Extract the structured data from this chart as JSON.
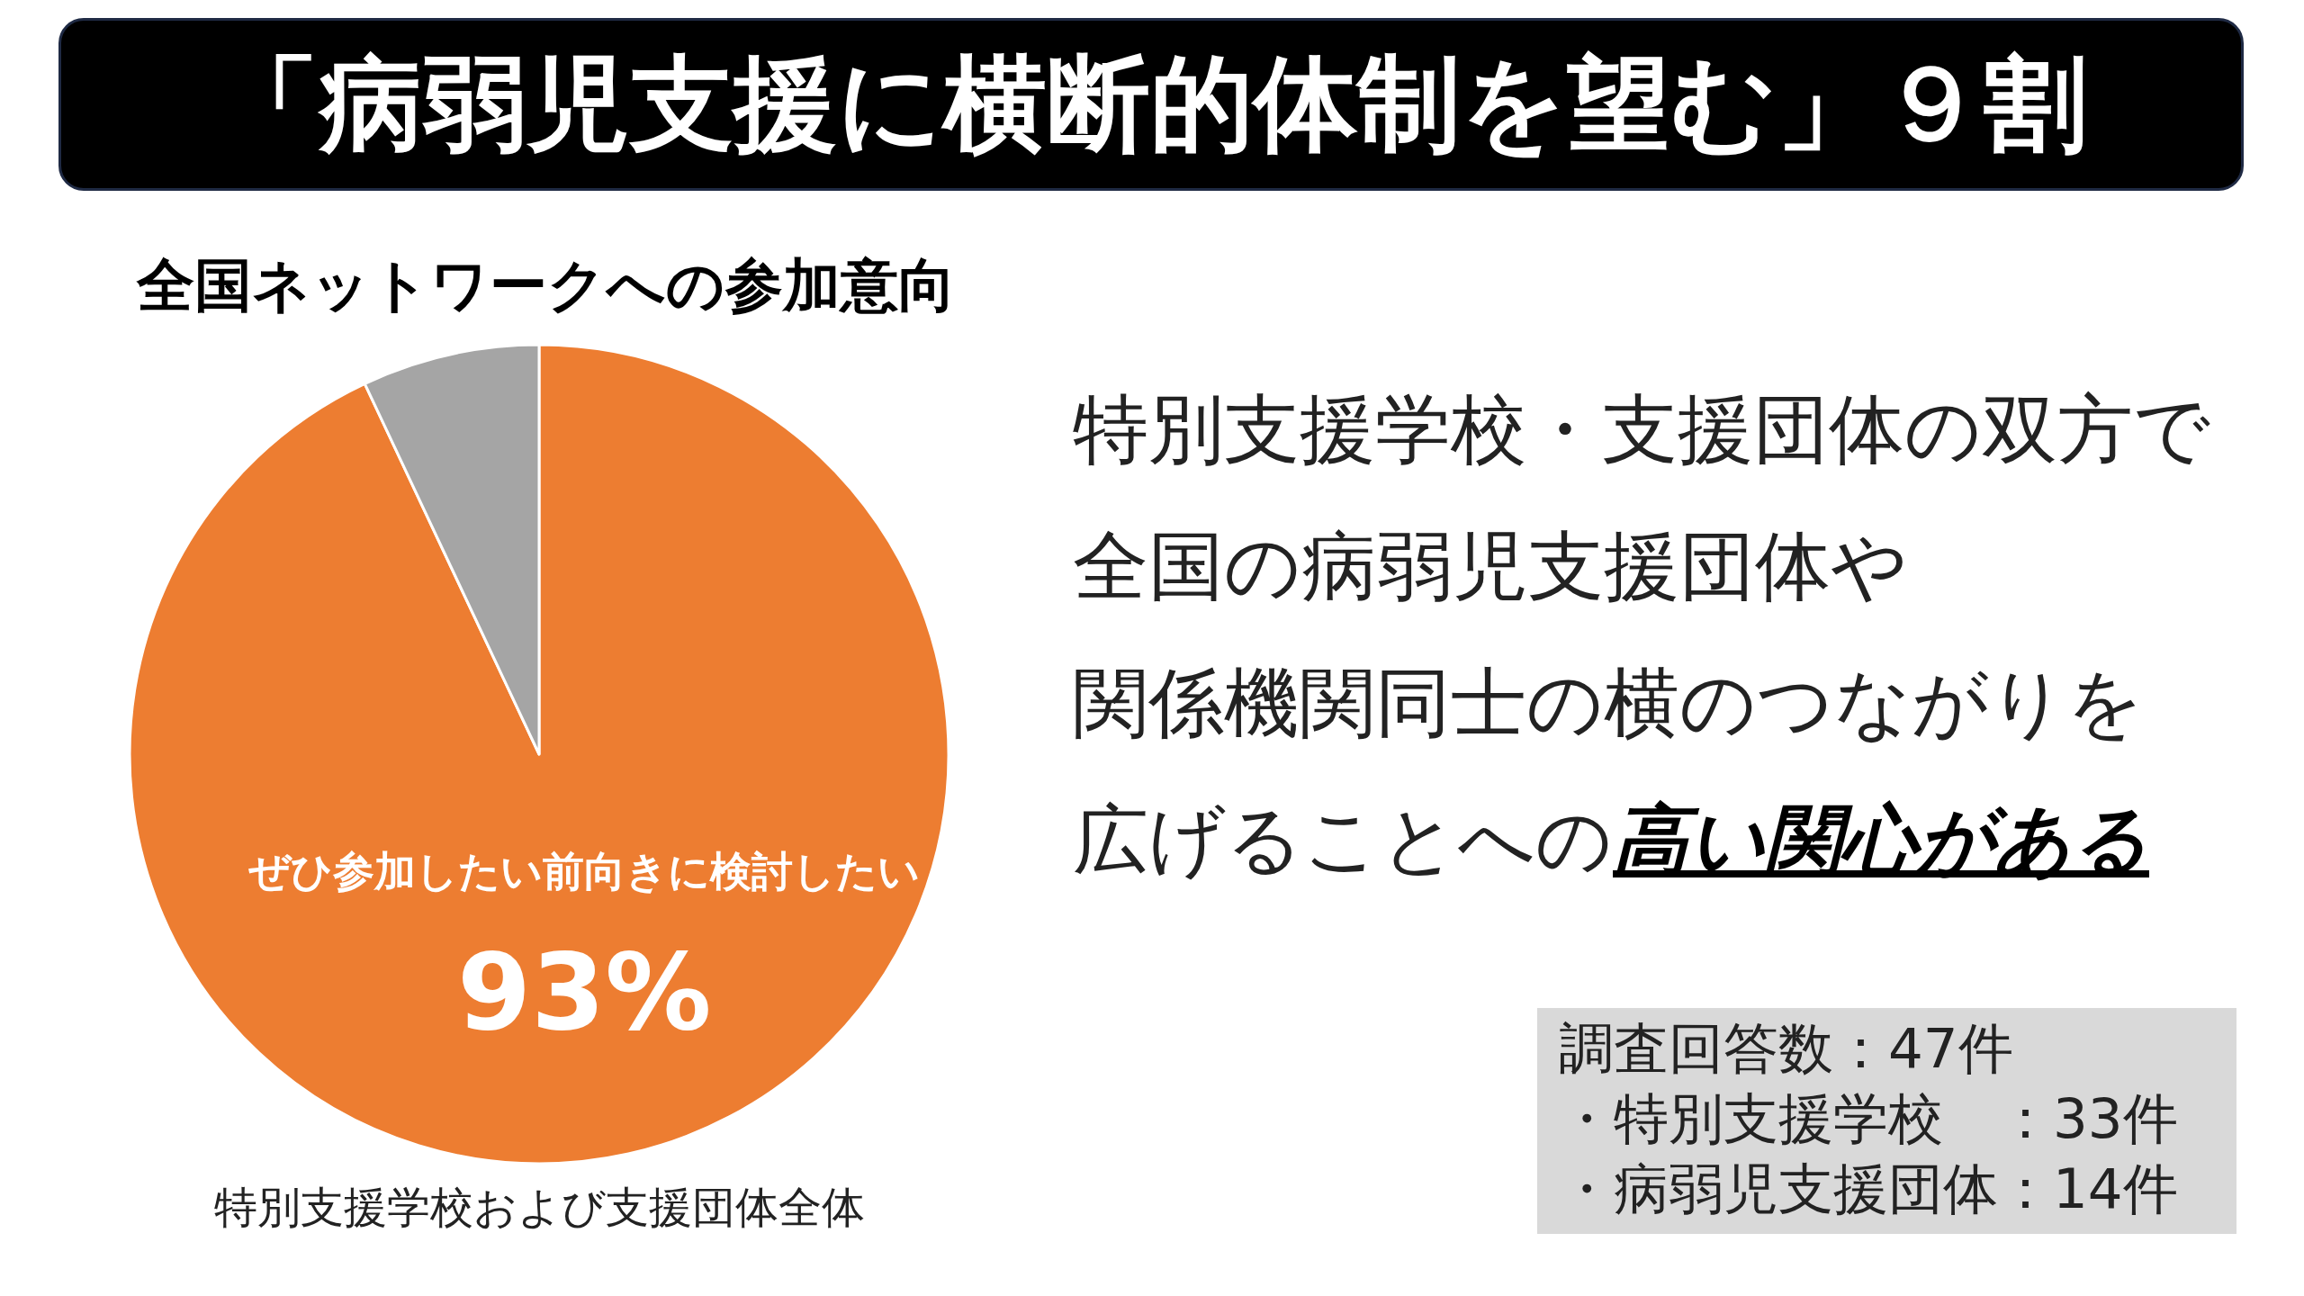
{
  "chart_data": {
    "type": "pie",
    "title": "「病弱児支援に横断的体制を望む」９割",
    "subtitle": "全国ネットワークへの参加意向",
    "categories": [
      "ぜひ参加したい前向きに検討したい",
      null
    ],
    "values": [
      93,
      7
    ],
    "colors": [
      "#ed7d31",
      "#a5a5a5"
    ],
    "value_labels": [
      "93%",
      null
    ],
    "annotations": [
      "特別支援学校・支援団体の双方で",
      "全国の病弱児支援団体や",
      "関係機関同士の横のつながりを",
      "広げることへの",
      "高い関心がある",
      "特別支援学校および支援団体全体",
      "調査回答数：47件",
      "・特別支援学校　：33件",
      "・病弱児支援団体：14件"
    ]
  }
}
